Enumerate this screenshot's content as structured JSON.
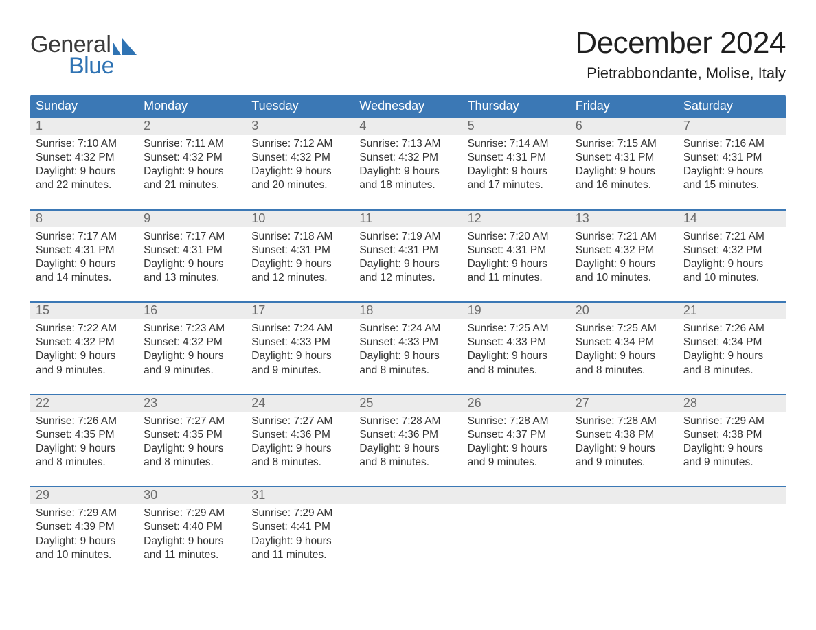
{
  "logo": {
    "text_general": "General",
    "text_blue": "Blue",
    "mark_fill": "#2f73b3"
  },
  "header": {
    "month_title": "December 2024",
    "location": "Pietrabbondante, Molise, Italy"
  },
  "colors": {
    "accent": "#3b78b5",
    "row_bg": "#ececec",
    "row_border": "#3b78b5",
    "text": "#333333",
    "background": "#ffffff"
  },
  "days_of_week": [
    "Sunday",
    "Monday",
    "Tuesday",
    "Wednesday",
    "Thursday",
    "Friday",
    "Saturday"
  ],
  "weeks": [
    {
      "days": [
        {
          "n": "1",
          "sunrise": "Sunrise: 7:10 AM",
          "sunset": "Sunset: 4:32 PM",
          "daylight": "Daylight: 9 hours and 22 minutes."
        },
        {
          "n": "2",
          "sunrise": "Sunrise: 7:11 AM",
          "sunset": "Sunset: 4:32 PM",
          "daylight": "Daylight: 9 hours and 21 minutes."
        },
        {
          "n": "3",
          "sunrise": "Sunrise: 7:12 AM",
          "sunset": "Sunset: 4:32 PM",
          "daylight": "Daylight: 9 hours and 20 minutes."
        },
        {
          "n": "4",
          "sunrise": "Sunrise: 7:13 AM",
          "sunset": "Sunset: 4:32 PM",
          "daylight": "Daylight: 9 hours and 18 minutes."
        },
        {
          "n": "5",
          "sunrise": "Sunrise: 7:14 AM",
          "sunset": "Sunset: 4:31 PM",
          "daylight": "Daylight: 9 hours and 17 minutes."
        },
        {
          "n": "6",
          "sunrise": "Sunrise: 7:15 AM",
          "sunset": "Sunset: 4:31 PM",
          "daylight": "Daylight: 9 hours and 16 minutes."
        },
        {
          "n": "7",
          "sunrise": "Sunrise: 7:16 AM",
          "sunset": "Sunset: 4:31 PM",
          "daylight": "Daylight: 9 hours and 15 minutes."
        }
      ]
    },
    {
      "days": [
        {
          "n": "8",
          "sunrise": "Sunrise: 7:17 AM",
          "sunset": "Sunset: 4:31 PM",
          "daylight": "Daylight: 9 hours and 14 minutes."
        },
        {
          "n": "9",
          "sunrise": "Sunrise: 7:17 AM",
          "sunset": "Sunset: 4:31 PM",
          "daylight": "Daylight: 9 hours and 13 minutes."
        },
        {
          "n": "10",
          "sunrise": "Sunrise: 7:18 AM",
          "sunset": "Sunset: 4:31 PM",
          "daylight": "Daylight: 9 hours and 12 minutes."
        },
        {
          "n": "11",
          "sunrise": "Sunrise: 7:19 AM",
          "sunset": "Sunset: 4:31 PM",
          "daylight": "Daylight: 9 hours and 12 minutes."
        },
        {
          "n": "12",
          "sunrise": "Sunrise: 7:20 AM",
          "sunset": "Sunset: 4:31 PM",
          "daylight": "Daylight: 9 hours and 11 minutes."
        },
        {
          "n": "13",
          "sunrise": "Sunrise: 7:21 AM",
          "sunset": "Sunset: 4:32 PM",
          "daylight": "Daylight: 9 hours and 10 minutes."
        },
        {
          "n": "14",
          "sunrise": "Sunrise: 7:21 AM",
          "sunset": "Sunset: 4:32 PM",
          "daylight": "Daylight: 9 hours and 10 minutes."
        }
      ]
    },
    {
      "days": [
        {
          "n": "15",
          "sunrise": "Sunrise: 7:22 AM",
          "sunset": "Sunset: 4:32 PM",
          "daylight": "Daylight: 9 hours and 9 minutes."
        },
        {
          "n": "16",
          "sunrise": "Sunrise: 7:23 AM",
          "sunset": "Sunset: 4:32 PM",
          "daylight": "Daylight: 9 hours and 9 minutes."
        },
        {
          "n": "17",
          "sunrise": "Sunrise: 7:24 AM",
          "sunset": "Sunset: 4:33 PM",
          "daylight": "Daylight: 9 hours and 9 minutes."
        },
        {
          "n": "18",
          "sunrise": "Sunrise: 7:24 AM",
          "sunset": "Sunset: 4:33 PM",
          "daylight": "Daylight: 9 hours and 8 minutes."
        },
        {
          "n": "19",
          "sunrise": "Sunrise: 7:25 AM",
          "sunset": "Sunset: 4:33 PM",
          "daylight": "Daylight: 9 hours and 8 minutes."
        },
        {
          "n": "20",
          "sunrise": "Sunrise: 7:25 AM",
          "sunset": "Sunset: 4:34 PM",
          "daylight": "Daylight: 9 hours and 8 minutes."
        },
        {
          "n": "21",
          "sunrise": "Sunrise: 7:26 AM",
          "sunset": "Sunset: 4:34 PM",
          "daylight": "Daylight: 9 hours and 8 minutes."
        }
      ]
    },
    {
      "days": [
        {
          "n": "22",
          "sunrise": "Sunrise: 7:26 AM",
          "sunset": "Sunset: 4:35 PM",
          "daylight": "Daylight: 9 hours and 8 minutes."
        },
        {
          "n": "23",
          "sunrise": "Sunrise: 7:27 AM",
          "sunset": "Sunset: 4:35 PM",
          "daylight": "Daylight: 9 hours and 8 minutes."
        },
        {
          "n": "24",
          "sunrise": "Sunrise: 7:27 AM",
          "sunset": "Sunset: 4:36 PM",
          "daylight": "Daylight: 9 hours and 8 minutes."
        },
        {
          "n": "25",
          "sunrise": "Sunrise: 7:28 AM",
          "sunset": "Sunset: 4:36 PM",
          "daylight": "Daylight: 9 hours and 8 minutes."
        },
        {
          "n": "26",
          "sunrise": "Sunrise: 7:28 AM",
          "sunset": "Sunset: 4:37 PM",
          "daylight": "Daylight: 9 hours and 9 minutes."
        },
        {
          "n": "27",
          "sunrise": "Sunrise: 7:28 AM",
          "sunset": "Sunset: 4:38 PM",
          "daylight": "Daylight: 9 hours and 9 minutes."
        },
        {
          "n": "28",
          "sunrise": "Sunrise: 7:29 AM",
          "sunset": "Sunset: 4:38 PM",
          "daylight": "Daylight: 9 hours and 9 minutes."
        }
      ]
    },
    {
      "days": [
        {
          "n": "29",
          "sunrise": "Sunrise: 7:29 AM",
          "sunset": "Sunset: 4:39 PM",
          "daylight": "Daylight: 9 hours and 10 minutes."
        },
        {
          "n": "30",
          "sunrise": "Sunrise: 7:29 AM",
          "sunset": "Sunset: 4:40 PM",
          "daylight": "Daylight: 9 hours and 11 minutes."
        },
        {
          "n": "31",
          "sunrise": "Sunrise: 7:29 AM",
          "sunset": "Sunset: 4:41 PM",
          "daylight": "Daylight: 9 hours and 11 minutes."
        },
        {
          "n": "",
          "sunrise": "",
          "sunset": "",
          "daylight": ""
        },
        {
          "n": "",
          "sunrise": "",
          "sunset": "",
          "daylight": ""
        },
        {
          "n": "",
          "sunrise": "",
          "sunset": "",
          "daylight": ""
        },
        {
          "n": "",
          "sunrise": "",
          "sunset": "",
          "daylight": ""
        }
      ]
    }
  ]
}
